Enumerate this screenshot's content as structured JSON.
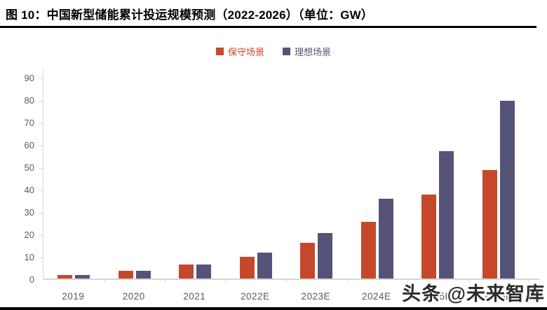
{
  "title": "图 10：中国新型储能累计投运规模预测（2022-2026）（单位：GW）",
  "watermark": "头条 @未来智库",
  "colors": {
    "conservative": "#C6482A",
    "ideal": "#565379",
    "axis_line": "#D9D9D9",
    "tick_label": "#595959",
    "title_text": "#000000",
    "rule": "#000000"
  },
  "chart_data": {
    "type": "bar",
    "title": "图 10：中国新型储能累计投运规模预测（2022-2026）（单位：GW）",
    "unit": "GW",
    "categories": [
      "2019",
      "2020",
      "2021",
      "2022E",
      "2023E",
      "2024E",
      "2025E",
      "2026E"
    ],
    "series": [
      {
        "name": "保守场景",
        "color": "#C6482A",
        "values": [
          1.7,
          3.3,
          6.2,
          9.6,
          16.0,
          25.2,
          37.6,
          48.5
        ]
      },
      {
        "name": "理想场景",
        "color": "#565379",
        "values": [
          1.7,
          3.3,
          6.2,
          11.5,
          20.2,
          35.5,
          57.0,
          79.5
        ]
      }
    ],
    "xlabel": "",
    "ylabel": "",
    "ylim": [
      0,
      90
    ],
    "yticks": [
      0,
      10,
      20,
      30,
      40,
      50,
      60,
      70,
      80,
      90
    ],
    "grid": false,
    "legend_position": "top"
  }
}
